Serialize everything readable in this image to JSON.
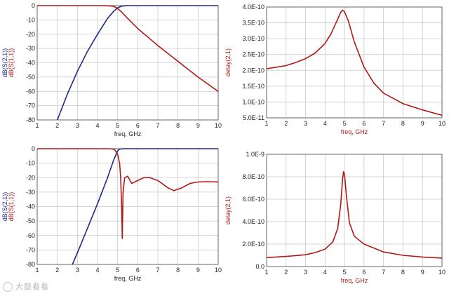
{
  "colors": {
    "s21": "#1f2a8a",
    "s11": "#b01818",
    "delay": "#b01818",
    "grid": "#c8c8c8"
  },
  "chart_data": [
    {
      "type": "line",
      "xlabel": "freq, GHz",
      "ylabel_series": [
        "dB(S(2,1))",
        "dB(S(1,1))"
      ],
      "xlim": [
        1,
        10
      ],
      "ylim": [
        -80,
        0
      ],
      "x_ticks": [
        "1",
        "2",
        "3",
        "4",
        "5",
        "6",
        "7",
        "8",
        "9",
        "10"
      ],
      "y_ticks": [
        "0",
        "-10",
        "-20",
        "-30",
        "-40",
        "-50",
        "-60",
        "-70",
        "-80"
      ],
      "series": [
        {
          "name": "dB(S(2,1))",
          "color": "#1f2a8a",
          "x": [
            2.0,
            2.5,
            3.0,
            3.5,
            4.0,
            4.5,
            4.8,
            5.0,
            5.2,
            5.4,
            5.7,
            6.0,
            7.0,
            8.0,
            9.0,
            10.0
          ],
          "y": [
            -80,
            -62,
            -46,
            -32,
            -20,
            -9,
            -4,
            -1.5,
            -0.4,
            -0.1,
            0,
            0,
            0,
            0,
            0,
            0
          ]
        },
        {
          "name": "dB(S(1,1))",
          "color": "#b01818",
          "x": [
            1.0,
            2.0,
            3.0,
            4.0,
            4.5,
            4.8,
            5.0,
            5.2,
            5.5,
            6.0,
            6.5,
            7.0,
            8.0,
            9.0,
            10.0
          ],
          "y": [
            0,
            0,
            0,
            0,
            -0.1,
            -0.5,
            -2,
            -4.5,
            -9,
            -16,
            -22,
            -28,
            -39,
            -50,
            -60
          ]
        }
      ]
    },
    {
      "type": "line",
      "xlabel": "freq, GHz",
      "ylabel_series": [
        "delay(2,1)"
      ],
      "xlim": [
        1,
        10
      ],
      "ylim": [
        5e-11,
        4e-10
      ],
      "x_ticks": [
        "1",
        "2",
        "3",
        "4",
        "5",
        "6",
        "7",
        "8",
        "9",
        "10"
      ],
      "y_ticks": [
        "4.0E-10",
        "3.5E-10",
        "3.0E-10",
        "2.5E-10",
        "2.0E-10",
        "1.5E-10",
        "1.0E-10",
        "5.0E-11"
      ],
      "y_tick_values": [
        4e-10,
        3.5e-10,
        3e-10,
        2.5e-10,
        2e-10,
        1.5e-10,
        1e-10,
        5e-11
      ],
      "series": [
        {
          "name": "delay(2,1)",
          "color": "#b01818",
          "x": [
            1.0,
            1.5,
            2.0,
            2.5,
            3.0,
            3.5,
            4.0,
            4.3,
            4.6,
            4.8,
            4.9,
            5.0,
            5.2,
            5.5,
            6.0,
            6.5,
            7.0,
            8.0,
            9.0,
            10.0
          ],
          "y": [
            2.05e-10,
            2.1e-10,
            2.15e-10,
            2.25e-10,
            2.37e-10,
            2.55e-10,
            2.85e-10,
            3.15e-10,
            3.55e-10,
            3.83e-10,
            3.9e-10,
            3.85e-10,
            3.55e-10,
            2.9e-10,
            2.1e-10,
            1.6e-10,
            1.28e-10,
            9.5e-11,
            7.5e-11,
            5.8e-11
          ]
        }
      ]
    },
    {
      "type": "line",
      "xlabel": "freq, GHz",
      "ylabel_series": [
        "dB(S(2,1))",
        "dB(S(1,1))"
      ],
      "xlim": [
        1,
        10
      ],
      "ylim": [
        -80,
        0
      ],
      "x_ticks": [
        "1",
        "2",
        "3",
        "4",
        "5",
        "6",
        "7",
        "8",
        "9",
        "10"
      ],
      "y_ticks": [
        "0",
        "-10",
        "-20",
        "-30",
        "-40",
        "-50",
        "-60",
        "-70",
        "-80"
      ],
      "series": [
        {
          "name": "dB(S(2,1))",
          "color": "#1f2a8a",
          "x": [
            2.75,
            3.0,
            3.5,
            4.0,
            4.5,
            4.8,
            5.0,
            5.1,
            5.3,
            6.0,
            7.0,
            8.0,
            9.0,
            10.0
          ],
          "y": [
            -80,
            -72,
            -55,
            -38,
            -20,
            -8,
            -1.5,
            -0.3,
            0,
            0,
            0,
            0,
            0,
            0
          ]
        },
        {
          "name": "dB(S(1,1))",
          "color": "#b01818",
          "x": [
            1.0,
            3.0,
            4.6,
            4.85,
            5.0,
            5.1,
            5.15,
            5.2,
            5.23,
            5.27,
            5.35,
            5.5,
            5.7,
            6.0,
            6.3,
            6.6,
            7.0,
            7.5,
            7.8,
            8.2,
            8.6,
            9.0,
            9.5,
            10.0
          ],
          "y": [
            0,
            0,
            0,
            -0.5,
            -4,
            -10,
            -20,
            -40,
            -62,
            -30,
            -20,
            -19,
            -24,
            -22,
            -20,
            -20,
            -22,
            -27,
            -29,
            -27,
            -24,
            -23,
            -22.8,
            -23
          ]
        }
      ]
    },
    {
      "type": "line",
      "xlabel": "freq, GHz",
      "ylabel_series": [
        "delay(2,1)"
      ],
      "xlim": [
        1,
        10
      ],
      "ylim": [
        0,
        1e-09
      ],
      "x_ticks": [
        "1",
        "2",
        "3",
        "4",
        "5",
        "6",
        "7",
        "8",
        "9",
        "10"
      ],
      "y_ticks": [
        "1.0E-9",
        "8.0E-10",
        "6.0E-10",
        "4.0E-10",
        "2.0E-10",
        "0.0"
      ],
      "y_tick_values": [
        1e-09,
        8e-10,
        6e-10,
        4e-10,
        2e-10,
        0
      ],
      "series": [
        {
          "name": "delay(2,1)",
          "color": "#b01818",
          "x": [
            1.0,
            2.0,
            3.0,
            3.5,
            4.0,
            4.4,
            4.65,
            4.8,
            4.9,
            4.95,
            5.0,
            5.1,
            5.25,
            5.5,
            6.0,
            7.0,
            8.0,
            9.0,
            10.0
          ],
          "y": [
            8e-11,
            9e-11,
            1.05e-10,
            1.25e-10,
            1.55e-10,
            2.2e-10,
            3.4e-10,
            5.5e-10,
            7.8e-10,
            8.45e-10,
            8.2e-10,
            6.2e-10,
            3.9e-10,
            2.7e-10,
            2e-10,
            1.3e-10,
            1e-10,
            8.5e-11,
            7.5e-11
          ]
        }
      ]
    }
  ],
  "watermark": "大鼓看看"
}
